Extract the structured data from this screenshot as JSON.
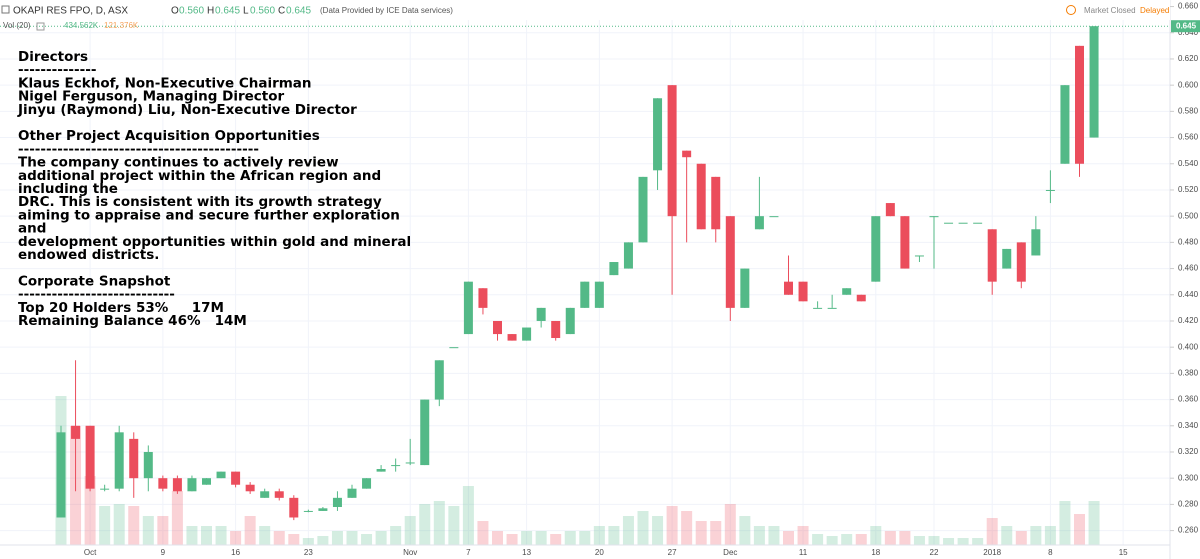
{
  "header": {
    "symbol": "OKAPI RES FPO, D, ASX",
    "o_label": "O",
    "o": "0.560",
    "h_label": "H",
    "h": "0.645",
    "l_label": "L",
    "l": "0.560",
    "c_label": "C",
    "c": "0.645",
    "source": "(Data Provided by ICE Data services)",
    "vol_label": "Vol (20)",
    "vol_value": "434.562K",
    "vol_ma": "121.376K",
    "status": "Market Closed",
    "delay": "Delayed"
  },
  "annotation": {
    "paragraphs": [
      [
        "Directors",
        "--------------",
        "Klaus Eckhof, Non-Executive Chairman",
        "Nigel Ferguson, Managing Director",
        "Jinyu (Raymond) Liu, Non-Executive Director"
      ],
      [
        "Other Project Acquisition Opportunities",
        "-------------------------------------------",
        "The company continues to actively review",
        "additional project within the African region and",
        "including the",
        "DRC. This is consistent with its growth strategy",
        "aiming to appraise and secure further exploration",
        "and",
        "development opportunities within gold and mineral",
        "endowed districts."
      ],
      [
        "Corporate Snapshot",
        "----------------------------",
        "Top 20 Holders 53%     17M",
        "Remaining Balance 46%   14M"
      ]
    ]
  },
  "chart_data": {
    "type": "candlestick",
    "categories": [
      null,
      null,
      "Oct",
      null,
      null,
      null,
      null,
      "9",
      null,
      null,
      null,
      null,
      "16",
      null,
      null,
      null,
      null,
      "23",
      null,
      null,
      null,
      null,
      null,
      null,
      "Nov",
      null,
      null,
      null,
      "7",
      null,
      null,
      null,
      "13",
      null,
      null,
      null,
      null,
      "20",
      null,
      null,
      null,
      null,
      "27",
      null,
      null,
      null,
      "Dec",
      null,
      null,
      null,
      null,
      "11",
      null,
      null,
      null,
      null,
      "18",
      null,
      null,
      null,
      "22",
      null,
      null,
      null,
      "2018",
      null,
      null,
      null,
      "8",
      null,
      null,
      null,
      null,
      "15"
    ],
    "open": [
      0.27,
      0.34,
      0.34,
      0.292,
      0.292,
      0.33,
      0.3,
      0.3,
      0.3,
      0.29,
      0.295,
      0.3,
      0.305,
      0.295,
      0.285,
      0.29,
      0.285,
      0.275,
      0.275,
      0.278,
      0.285,
      0.292,
      0.305,
      0.31,
      0.312,
      0.31,
      0.36,
      0.4,
      0.41,
      0.445,
      0.42,
      0.41,
      0.405,
      0.42,
      0.42,
      0.41,
      0.43,
      0.43,
      0.455,
      0.46,
      0.48,
      0.535,
      0.6,
      0.55,
      0.54,
      0.53,
      0.5,
      0.43,
      0.49,
      0.5,
      0.45,
      0.45,
      0.43,
      0.43,
      0.44,
      0.44,
      0.45,
      0.51,
      0.5,
      0.47,
      0.5,
      0.495,
      0.495,
      0.495,
      0.49,
      0.46,
      0.48,
      0.47,
      0.52,
      0.54,
      0.63,
      0.56,
      null,
      null
    ],
    "high": [
      0.34,
      0.39,
      0.34,
      0.295,
      0.34,
      0.335,
      0.325,
      0.302,
      0.302,
      0.302,
      0.3,
      0.305,
      0.305,
      0.297,
      0.292,
      0.292,
      0.287,
      0.276,
      0.278,
      0.29,
      0.295,
      0.3,
      0.31,
      0.315,
      0.33,
      0.36,
      0.39,
      0.4,
      0.45,
      0.445,
      0.42,
      0.41,
      0.415,
      0.43,
      0.42,
      0.43,
      0.45,
      0.45,
      0.465,
      0.48,
      0.53,
      0.59,
      0.6,
      0.55,
      0.54,
      0.53,
      0.5,
      0.46,
      0.53,
      0.5,
      0.47,
      0.45,
      0.435,
      0.44,
      0.445,
      0.44,
      0.5,
      0.51,
      0.5,
      0.47,
      0.5,
      0.495,
      0.495,
      0.495,
      0.49,
      0.475,
      0.48,
      0.5,
      0.535,
      0.6,
      0.63,
      0.645,
      null,
      null
    ],
    "low": [
      0.27,
      0.29,
      0.29,
      0.29,
      0.29,
      0.285,
      0.29,
      0.29,
      0.288,
      0.29,
      0.295,
      0.3,
      0.293,
      0.288,
      0.285,
      0.283,
      0.268,
      0.274,
      0.275,
      0.275,
      0.285,
      0.292,
      0.305,
      0.305,
      0.31,
      0.31,
      0.355,
      0.4,
      0.41,
      0.425,
      0.405,
      0.405,
      0.405,
      0.415,
      0.405,
      0.41,
      0.43,
      0.43,
      0.455,
      0.46,
      0.48,
      0.52,
      0.44,
      0.48,
      0.49,
      0.48,
      0.42,
      0.43,
      0.49,
      0.5,
      0.44,
      0.435,
      0.43,
      0.43,
      0.44,
      0.435,
      0.45,
      0.5,
      0.46,
      0.465,
      0.46,
      0.495,
      0.495,
      0.495,
      0.44,
      0.46,
      0.445,
      0.47,
      0.51,
      0.54,
      0.53,
      0.56,
      null,
      null
    ],
    "close": [
      0.335,
      0.33,
      0.292,
      0.292,
      0.335,
      0.3,
      0.32,
      0.292,
      0.29,
      0.3,
      0.3,
      0.305,
      0.295,
      0.29,
      0.29,
      0.285,
      0.27,
      0.275,
      0.277,
      0.285,
      0.292,
      0.3,
      0.307,
      0.31,
      0.312,
      0.36,
      0.39,
      0.4,
      0.45,
      0.43,
      0.41,
      0.405,
      0.415,
      0.43,
      0.407,
      0.43,
      0.45,
      0.45,
      0.465,
      0.48,
      0.53,
      0.59,
      0.5,
      0.545,
      0.49,
      0.49,
      0.43,
      0.46,
      0.5,
      0.5,
      0.44,
      0.435,
      0.43,
      0.43,
      0.445,
      0.435,
      0.5,
      0.5,
      0.46,
      0.47,
      0.5,
      0.495,
      0.495,
      0.495,
      0.45,
      0.475,
      0.45,
      0.49,
      0.52,
      0.6,
      0.54,
      0.645,
      null,
      null
    ],
    "volume": [
      1490,
      1190,
      690,
      390,
      410,
      390,
      290,
      290,
      540,
      190,
      190,
      190,
      140,
      290,
      190,
      140,
      110,
      70,
      90,
      140,
      140,
      110,
      140,
      190,
      290,
      410,
      440,
      390,
      590,
      240,
      140,
      110,
      140,
      140,
      110,
      140,
      140,
      190,
      190,
      290,
      340,
      290,
      390,
      340,
      240,
      240,
      410,
      290,
      190,
      190,
      140,
      190,
      110,
      90,
      110,
      110,
      190,
      140,
      140,
      90,
      90,
      70,
      70,
      70,
      270,
      190,
      140,
      190,
      190,
      440,
      310,
      440,
      null,
      null
    ],
    "up_color": "#53b987",
    "down_color": "#eb4d5c",
    "ylim": [
      0.249,
      0.665
    ],
    "volume_lim": [
      0,
      1500
    ],
    "yticks": [
      {
        "value": 0.26,
        "label": "0.260"
      },
      {
        "value": 0.28,
        "label": "0.280"
      },
      {
        "value": 0.3,
        "label": "0.300"
      },
      {
        "value": 0.32,
        "label": "0.320"
      },
      {
        "value": 0.34,
        "label": "0.340"
      },
      {
        "value": 0.36,
        "label": "0.360"
      },
      {
        "value": 0.38,
        "label": "0.380"
      },
      {
        "value": 0.4,
        "label": "0.400"
      },
      {
        "value": 0.42,
        "label": "0.420"
      },
      {
        "value": 0.44,
        "label": "0.440"
      },
      {
        "value": 0.46,
        "label": "0.460"
      },
      {
        "value": 0.48,
        "label": "0.480"
      },
      {
        "value": 0.5,
        "label": "0.500"
      },
      {
        "value": 0.52,
        "label": "0.520"
      },
      {
        "value": 0.54,
        "label": "0.540"
      },
      {
        "value": 0.56,
        "label": "0.560"
      },
      {
        "value": 0.58,
        "label": "0.580"
      },
      {
        "value": 0.6,
        "label": "0.600"
      },
      {
        "value": 0.62,
        "label": "0.620"
      },
      {
        "value": 0.64,
        "label": "0.640"
      },
      {
        "value": 0.66,
        "label": "0.660"
      }
    ],
    "last_price": {
      "value": 0.645,
      "label": "0.645"
    },
    "grid": true
  }
}
